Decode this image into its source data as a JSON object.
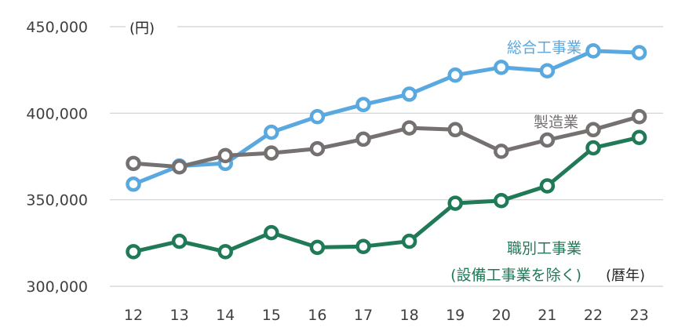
{
  "chart_data": {
    "type": "line",
    "ylabel": "(円)",
    "xlabel": "(暦年)",
    "ylim": [
      300000,
      450000
    ],
    "yticks": [
      300000,
      350000,
      400000,
      450000
    ],
    "ytick_labels": [
      "300,000",
      "350,000",
      "400,000",
      "450,000"
    ],
    "x": [
      "12",
      "13",
      "14",
      "15",
      "16",
      "17",
      "18",
      "19",
      "20",
      "21",
      "22",
      "23"
    ],
    "series": [
      {
        "name": "総合工事業",
        "label_lines": [
          "総合工事業"
        ],
        "color": "#5aa8e0",
        "values": [
          359000,
          369500,
          371000,
          389000,
          398000,
          405000,
          411000,
          422000,
          426500,
          424500,
          436000,
          435000
        ]
      },
      {
        "name": "製造業",
        "label_lines": [
          "製造業"
        ],
        "color": "#767171",
        "values": [
          371000,
          369000,
          375500,
          377000,
          379500,
          385000,
          391500,
          390500,
          378000,
          384500,
          390500,
          398000
        ]
      },
      {
        "name": "職別工事業(設備工事業を除く)",
        "label_lines": [
          "職別工事業",
          "(設備工事業を除く)"
        ],
        "color": "#207a58",
        "values": [
          320000,
          326000,
          320000,
          331000,
          322500,
          323000,
          326000,
          348000,
          349500,
          358000,
          380000,
          386000
        ]
      }
    ]
  }
}
